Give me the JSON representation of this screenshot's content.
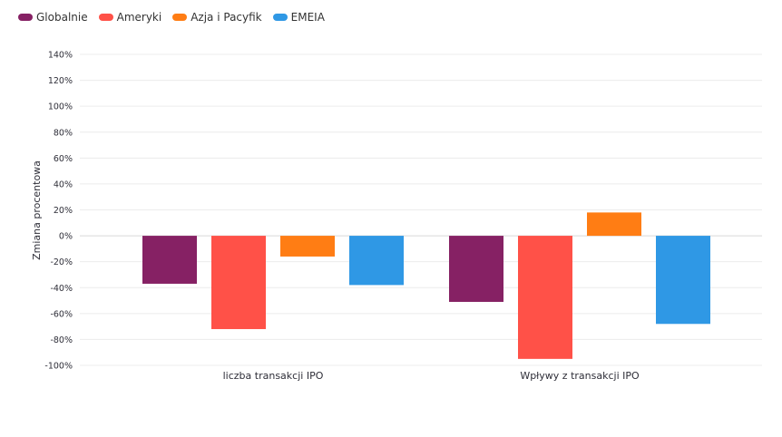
{
  "chart_data": {
    "type": "bar",
    "title": "",
    "xlabel": "",
    "ylabel": "Zmiana procentowa",
    "ylim": [
      -100,
      140
    ],
    "yticks": [
      140,
      120,
      100,
      80,
      60,
      40,
      20,
      0,
      -20,
      -40,
      -60,
      -80,
      -100
    ],
    "ytick_labels": [
      "140%",
      "120%",
      "100%",
      "80%",
      "60%",
      "40%",
      "20%",
      "0%",
      "-20%",
      "-40%",
      "-60%",
      "-80%",
      "-100%"
    ],
    "grid": true,
    "legend_position": "top-left",
    "categories": [
      "liczba transakcji IPO",
      "Wpływy z transakcji IPO"
    ],
    "series": [
      {
        "name": "Globalnie",
        "color": "#862164",
        "values": [
          -37,
          -51
        ]
      },
      {
        "name": "Ameryki",
        "color": "#ff5148",
        "values": [
          -72,
          -95
        ]
      },
      {
        "name": "Azja i Pacyfik",
        "color": "#ff7d14",
        "values": [
          -16,
          18
        ]
      },
      {
        "name": "EMEIA",
        "color": "#2f98e5",
        "values": [
          -38,
          -68
        ]
      }
    ]
  }
}
